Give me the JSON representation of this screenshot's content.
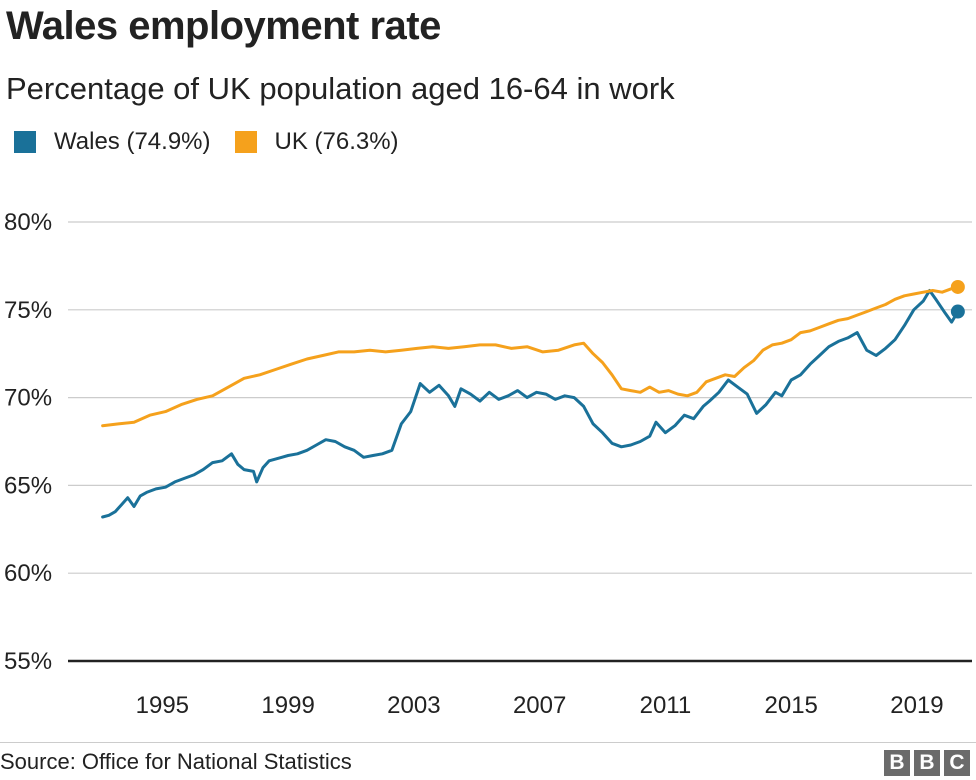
{
  "chart_data": {
    "type": "line",
    "title": "Wales employment rate",
    "subtitle": "Percentage of UK population aged 16-64 in work",
    "xlabel": "",
    "ylabel": "",
    "xlim": [
      1992.0,
      2020.75
    ],
    "ylim": [
      55,
      80
    ],
    "y_ticks": [
      55,
      60,
      65,
      70,
      75,
      80
    ],
    "y_tick_labels": [
      "55%",
      "60%",
      "65%",
      "70%",
      "75%",
      "80%"
    ],
    "x_ticks": [
      1995,
      1999,
      2003,
      2007,
      2011,
      2015,
      2019
    ],
    "x_tick_labels": [
      "1995",
      "1999",
      "2003",
      "2007",
      "2011",
      "2015",
      "2019"
    ],
    "grid": true,
    "legend_placement": "top-left",
    "series": [
      {
        "name": "Wales (74.9%)",
        "color": "#1a7199",
        "end_marker": true,
        "x": [
          1993.1,
          1993.3,
          1993.5,
          1993.7,
          1993.9,
          1994.1,
          1994.3,
          1994.5,
          1994.8,
          1995.1,
          1995.4,
          1995.7,
          1996.0,
          1996.3,
          1996.6,
          1996.9,
          1997.2,
          1997.4,
          1997.6,
          1997.9,
          1998.0,
          1998.2,
          1998.4,
          1998.6,
          1998.8,
          1999.0,
          1999.3,
          1999.6,
          1999.9,
          2000.2,
          2000.5,
          2000.8,
          2001.1,
          2001.4,
          2001.7,
          2002.0,
          2002.3,
          2002.6,
          2002.9,
          2003.2,
          2003.5,
          2003.8,
          2004.1,
          2004.3,
          2004.5,
          2004.8,
          2005.1,
          2005.4,
          2005.7,
          2006.0,
          2006.3,
          2006.6,
          2006.9,
          2007.2,
          2007.5,
          2007.8,
          2008.1,
          2008.4,
          2008.7,
          2009.0,
          2009.3,
          2009.6,
          2009.9,
          2010.2,
          2010.5,
          2010.7,
          2011.0,
          2011.3,
          2011.6,
          2011.9,
          2012.2,
          2012.4,
          2012.7,
          2013.0,
          2013.3,
          2013.6,
          2013.9,
          2014.2,
          2014.5,
          2014.7,
          2015.0,
          2015.3,
          2015.6,
          2015.9,
          2016.2,
          2016.5,
          2016.8,
          2017.1,
          2017.4,
          2017.7,
          2018.0,
          2018.3,
          2018.6,
          2018.9,
          2019.2,
          2019.4,
          2019.6,
          2019.9,
          2020.1,
          2020.3
        ],
        "values": [
          63.2,
          63.3,
          63.5,
          63.9,
          64.3,
          63.8,
          64.4,
          64.6,
          64.8,
          64.9,
          65.2,
          65.4,
          65.6,
          65.9,
          66.3,
          66.4,
          66.8,
          66.2,
          65.9,
          65.8,
          65.2,
          66.0,
          66.4,
          66.5,
          66.6,
          66.7,
          66.8,
          67.0,
          67.3,
          67.6,
          67.5,
          67.2,
          67.0,
          66.6,
          66.7,
          66.8,
          67.0,
          68.5,
          69.2,
          70.8,
          70.3,
          70.7,
          70.1,
          69.5,
          70.5,
          70.2,
          69.8,
          70.3,
          69.9,
          70.1,
          70.4,
          70.0,
          70.3,
          70.2,
          69.9,
          70.1,
          70.0,
          69.5,
          68.5,
          68.0,
          67.4,
          67.2,
          67.3,
          67.5,
          67.8,
          68.6,
          68.0,
          68.4,
          69.0,
          68.8,
          69.5,
          69.8,
          70.3,
          71.0,
          70.6,
          70.2,
          69.1,
          69.6,
          70.3,
          70.1,
          71.0,
          71.3,
          71.9,
          72.4,
          72.9,
          73.2,
          73.4,
          73.7,
          72.7,
          72.4,
          72.8,
          73.3,
          74.1,
          75.0,
          75.5,
          76.1,
          75.6,
          74.8,
          74.3,
          74.9
        ]
      },
      {
        "name": "UK (76.3%)",
        "color": "#f5a11c",
        "end_marker": true,
        "x": [
          1993.1,
          1993.6,
          1994.1,
          1994.6,
          1995.1,
          1995.6,
          1996.1,
          1996.6,
          1997.1,
          1997.6,
          1998.1,
          1998.6,
          1999.1,
          1999.6,
          2000.1,
          2000.6,
          2001.1,
          2001.6,
          2002.1,
          2002.6,
          2003.1,
          2003.6,
          2004.1,
          2004.6,
          2005.1,
          2005.6,
          2006.1,
          2006.6,
          2007.1,
          2007.6,
          2008.1,
          2008.4,
          2008.7,
          2009.0,
          2009.3,
          2009.6,
          2009.9,
          2010.2,
          2010.5,
          2010.8,
          2011.1,
          2011.4,
          2011.7,
          2012.0,
          2012.3,
          2012.6,
          2012.9,
          2013.2,
          2013.5,
          2013.8,
          2014.1,
          2014.4,
          2014.7,
          2015.0,
          2015.3,
          2015.6,
          2015.9,
          2016.2,
          2016.5,
          2016.8,
          2017.1,
          2017.4,
          2017.7,
          2018.0,
          2018.3,
          2018.6,
          2018.9,
          2019.2,
          2019.5,
          2019.8,
          2020.1,
          2020.3
        ],
        "values": [
          68.4,
          68.5,
          68.6,
          69.0,
          69.2,
          69.6,
          69.9,
          70.1,
          70.6,
          71.1,
          71.3,
          71.6,
          71.9,
          72.2,
          72.4,
          72.6,
          72.6,
          72.7,
          72.6,
          72.7,
          72.8,
          72.9,
          72.8,
          72.9,
          73.0,
          73.0,
          72.8,
          72.9,
          72.6,
          72.7,
          73.0,
          73.1,
          72.5,
          72.0,
          71.3,
          70.5,
          70.4,
          70.3,
          70.6,
          70.3,
          70.4,
          70.2,
          70.1,
          70.3,
          70.9,
          71.1,
          71.3,
          71.2,
          71.7,
          72.1,
          72.7,
          73.0,
          73.1,
          73.3,
          73.7,
          73.8,
          74.0,
          74.2,
          74.4,
          74.5,
          74.7,
          74.9,
          75.1,
          75.3,
          75.6,
          75.8,
          75.9,
          76.0,
          76.1,
          76.0,
          76.2,
          76.3
        ]
      }
    ]
  },
  "source": "Source: Office for National Statistics",
  "logo": [
    "B",
    "B",
    "C"
  ]
}
